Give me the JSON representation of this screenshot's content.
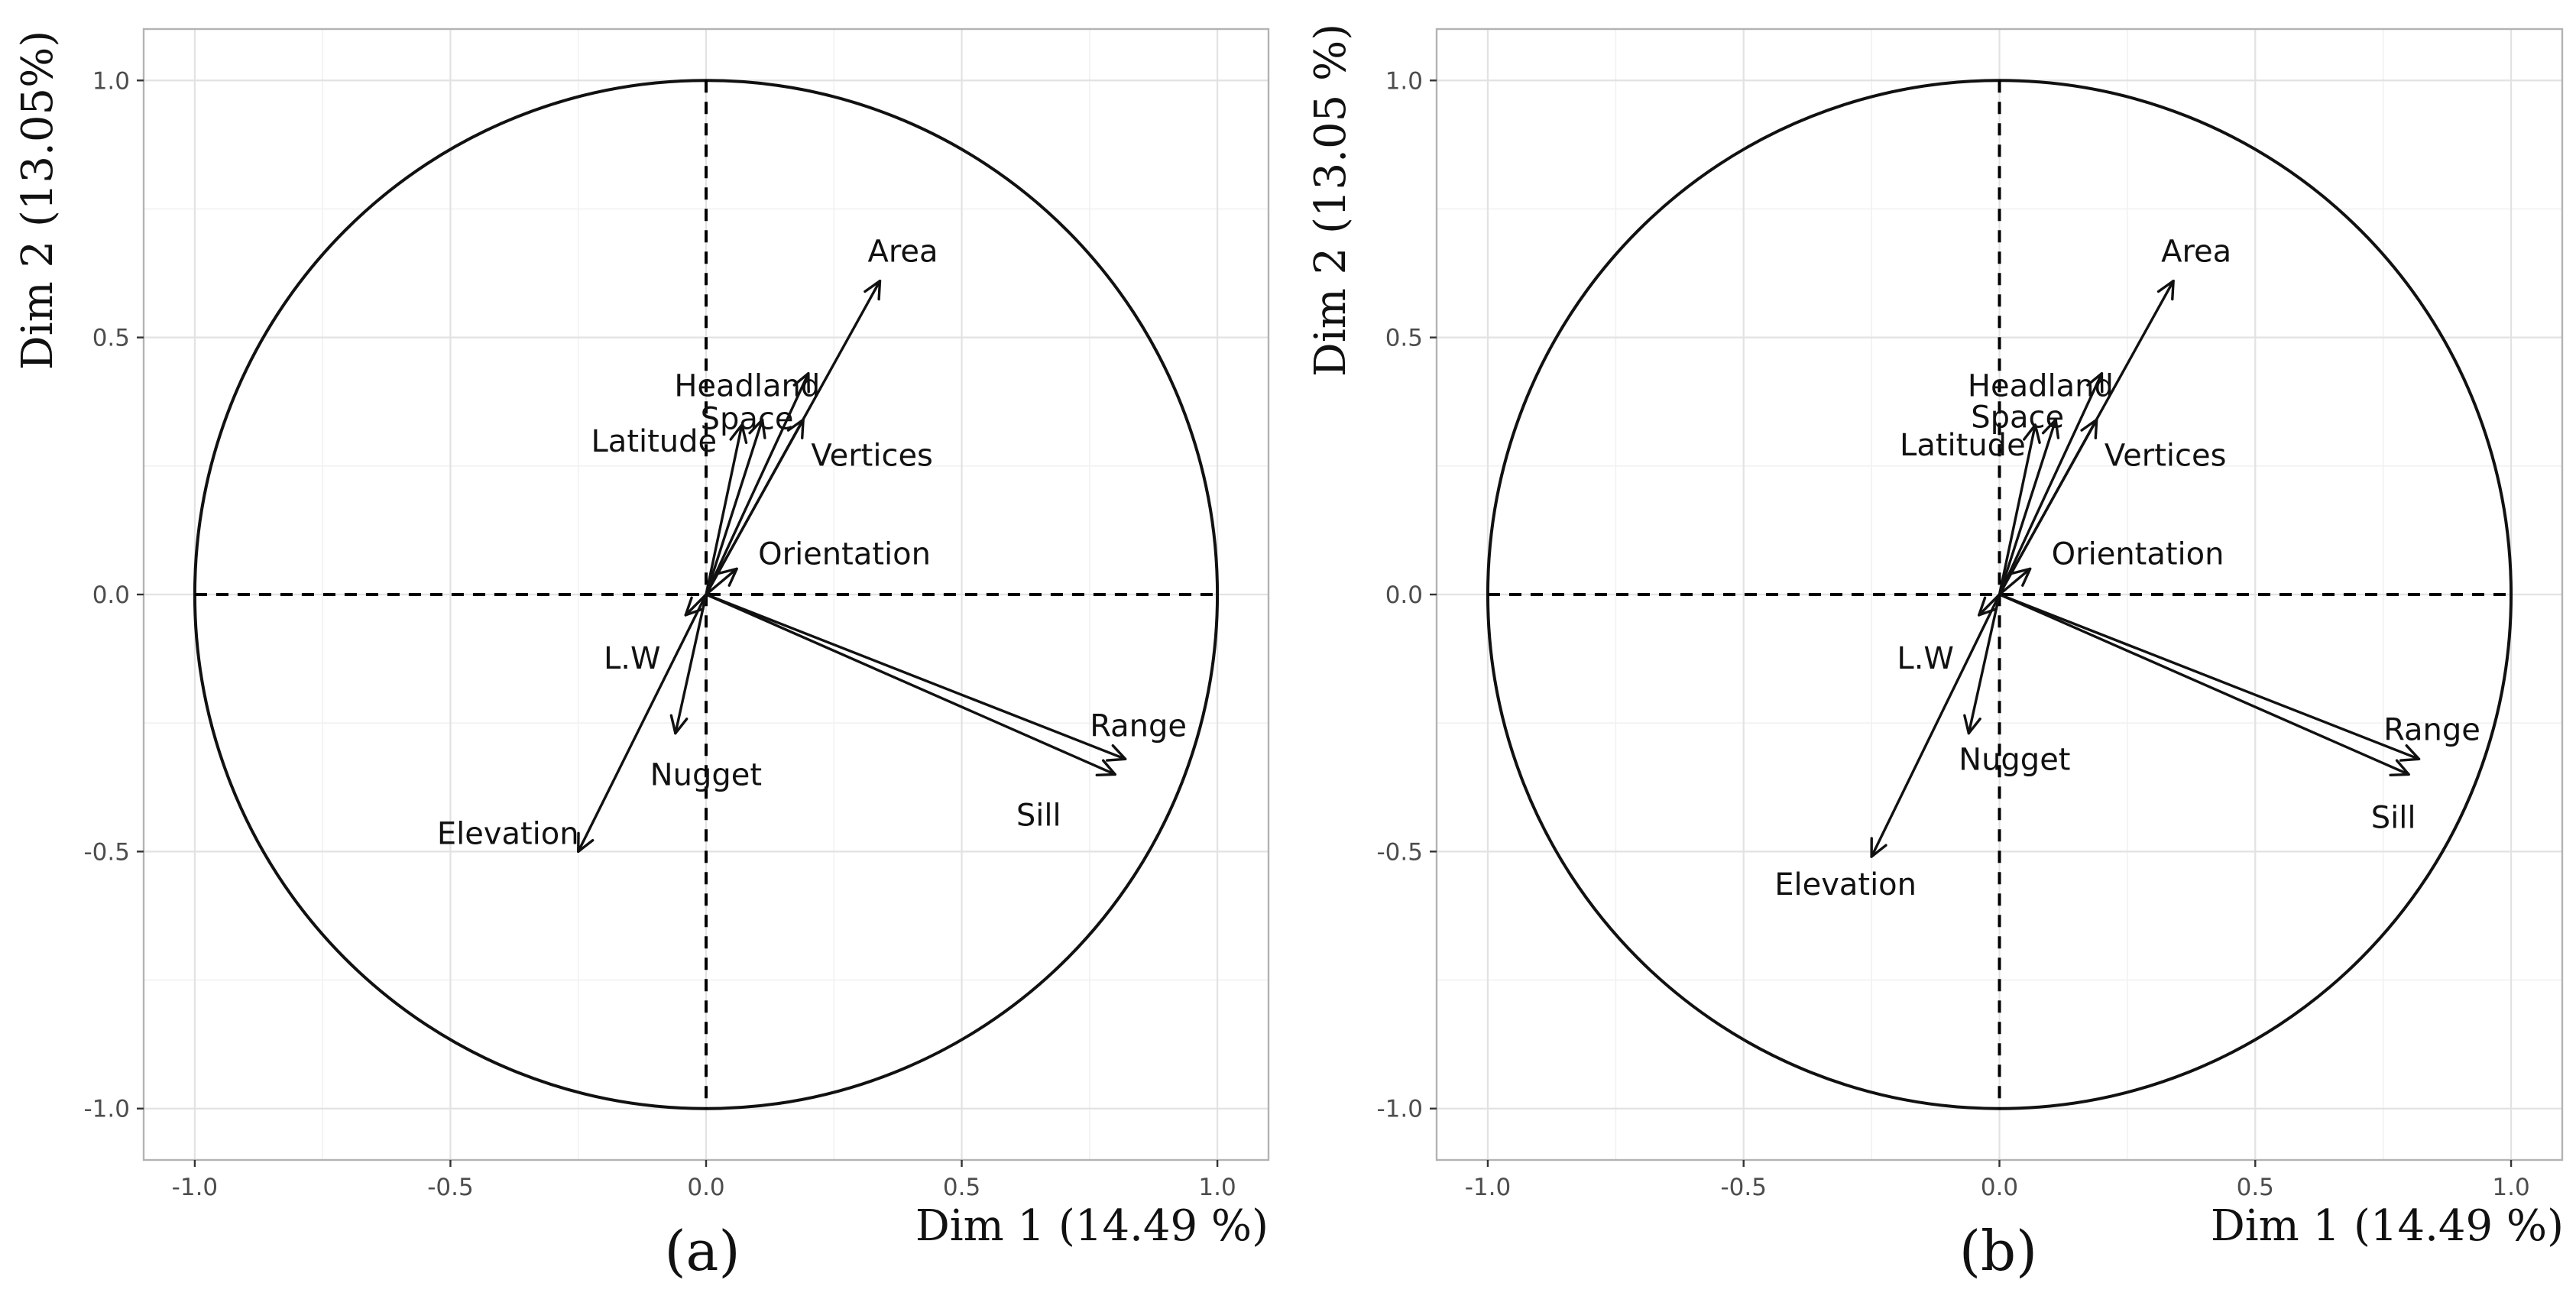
{
  "chart_data": [
    {
      "type": "scatter",
      "subtype": "pca-variable-correlation-circle",
      "panel_label": "(a)",
      "xlabel": "Dim 1 (14.49 %)",
      "ylabel": "Dim 2 (13.05%)",
      "xlim": [
        -1.1,
        1.1
      ],
      "ylim": [
        -1.1,
        1.1
      ],
      "x_ticks": [
        -1.0,
        -0.5,
        0.0,
        0.5,
        1.0
      ],
      "y_ticks": [
        -1.0,
        -0.5,
        0.0,
        0.5,
        1.0
      ],
      "x_tick_labels": [
        "-1.0",
        "-0.5",
        "0.0",
        "0.5",
        "1.0"
      ],
      "y_tick_labels": [
        "-1.0",
        "-0.5",
        "0.0",
        "0.5",
        "1.0"
      ],
      "grid": true,
      "unit_circle": true,
      "variables": [
        {
          "name": "Area",
          "x": 0.34,
          "y": 0.61
        },
        {
          "name": "Headland",
          "x": 0.2,
          "y": 0.43
        },
        {
          "name": "Space",
          "x": 0.11,
          "y": 0.34
        },
        {
          "name": "Latitude",
          "x": 0.07,
          "y": 0.33
        },
        {
          "name": "Vertices",
          "x": 0.19,
          "y": 0.34
        },
        {
          "name": "Orientation",
          "x": 0.06,
          "y": 0.05
        },
        {
          "name": "L.W",
          "x": -0.04,
          "y": -0.04
        },
        {
          "name": "Nugget",
          "x": -0.06,
          "y": -0.27
        },
        {
          "name": "Elevation",
          "x": -0.25,
          "y": -0.5
        },
        {
          "name": "Range",
          "x": 0.82,
          "y": -0.32
        },
        {
          "name": "Sill",
          "x": 0.8,
          "y": -0.35
        }
      ]
    },
    {
      "type": "scatter",
      "subtype": "pca-variable-correlation-circle",
      "panel_label": "(b)",
      "xlabel": "Dim 1 (14.49 %)",
      "ylabel": "Dim 2 (13.05 %)",
      "xlim": [
        -1.1,
        1.1
      ],
      "ylim": [
        -1.1,
        1.1
      ],
      "x_ticks": [
        -1.0,
        -0.5,
        0.0,
        0.5,
        1.0
      ],
      "y_ticks": [
        -1.0,
        -0.5,
        0.0,
        0.5,
        1.0
      ],
      "x_tick_labels": [
        "-1.0",
        "-0.5",
        "0.0",
        "0.5",
        "1.0"
      ],
      "y_tick_labels": [
        "-1.0",
        "-0.5",
        "0.0",
        "0.5",
        "1.0"
      ],
      "grid": true,
      "unit_circle": true,
      "variables": [
        {
          "name": "Area",
          "x": 0.34,
          "y": 0.61
        },
        {
          "name": "Headland",
          "x": 0.2,
          "y": 0.43
        },
        {
          "name": "Space",
          "x": 0.11,
          "y": 0.34
        },
        {
          "name": "Latitude",
          "x": 0.07,
          "y": 0.33
        },
        {
          "name": "Vertices",
          "x": 0.19,
          "y": 0.34
        },
        {
          "name": "Orientation",
          "x": 0.06,
          "y": 0.05
        },
        {
          "name": "L.W",
          "x": -0.04,
          "y": -0.04
        },
        {
          "name": "Nugget",
          "x": -0.06,
          "y": -0.27
        },
        {
          "name": "Elevation",
          "x": -0.25,
          "y": -0.51
        },
        {
          "name": "Range",
          "x": 0.82,
          "y": -0.32
        },
        {
          "name": "Sill",
          "x": 0.8,
          "y": -0.35
        }
      ]
    }
  ]
}
